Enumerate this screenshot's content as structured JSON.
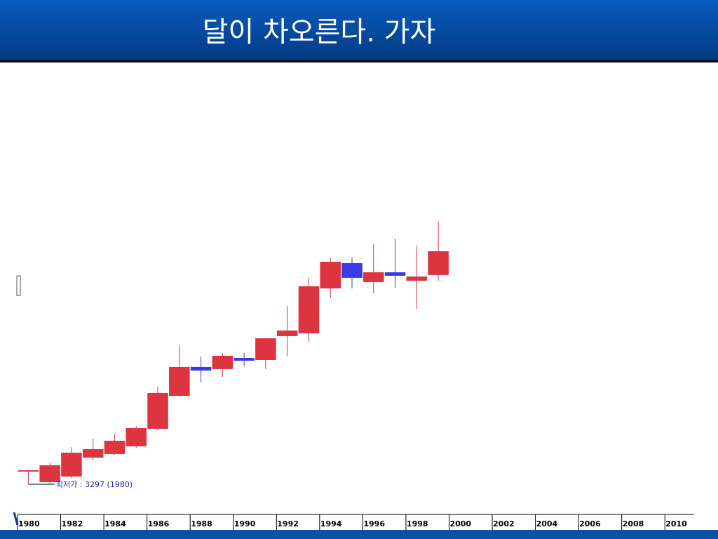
{
  "chart_data": {
    "type": "candlestick",
    "title": "달이 차오른다. 가자",
    "annotation": "최저가 : 3297 (1980)",
    "x": [
      1980,
      1981,
      1982,
      1983,
      1984,
      1985,
      1986,
      1987,
      1988,
      1989,
      1990,
      1991,
      1992,
      1993,
      1994,
      1995,
      1996,
      1997,
      1998,
      1999
    ],
    "open": [
      4830,
      3530,
      4140,
      6210,
      6600,
      7440,
      9360,
      12960,
      16110,
      15880,
      17100,
      16870,
      19480,
      19790,
      24700,
      27460,
      25390,
      26460,
      25540,
      26160
    ],
    "close": [
      4830,
      5370,
      6750,
      7130,
      8050,
      9430,
      13270,
      16110,
      15720,
      17330,
      16800,
      19250,
      20100,
      24930,
      27610,
      25850,
      26460,
      26080,
      26000,
      28760
    ],
    "high": [
      4830,
      5600,
      7360,
      8280,
      8740,
      9660,
      13960,
      18490,
      17260,
      17640,
      17640,
      19300,
      22780,
      25850,
      28070,
      28070,
      29530,
      30140,
      29380,
      32060
    ],
    "low": [
      3297,
      3350,
      3990,
      5910,
      6520,
      7290,
      9200,
      12890,
      14420,
      15030,
      16180,
      15880,
      17260,
      18870,
      23620,
      24700,
      24160,
      24770,
      22470,
      25540
    ],
    "up_color": "#dc3540",
    "down_color": "#3a3ae6",
    "annotation_color": "#2020c0",
    "xlim": [
      1980,
      2011
    ],
    "ylim": [
      0,
      50000
    ],
    "xticks": [
      1980,
      1982,
      1984,
      1986,
      1988,
      1990,
      1992,
      1994,
      1996,
      1998,
      2000,
      2002,
      2004,
      2006,
      2008,
      2010
    ]
  }
}
